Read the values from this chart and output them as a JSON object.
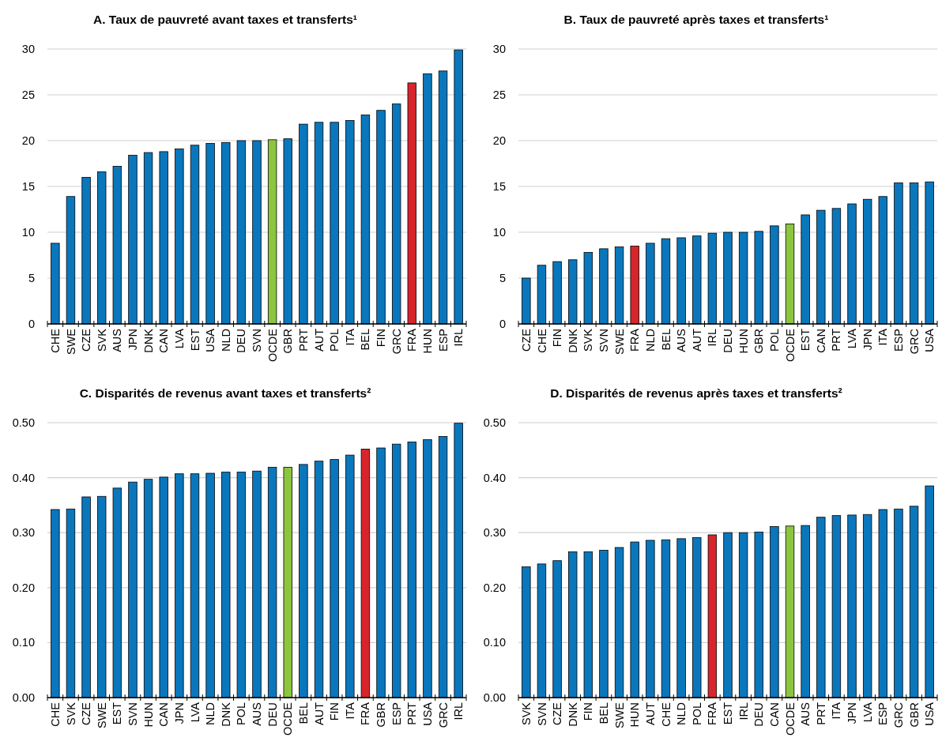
{
  "chart_data": [
    {
      "type": "bar",
      "title": "A. Taux de pauvreté avant taxes et transferts¹",
      "categories": [
        "CHE",
        "SWE",
        "CZE",
        "SVK",
        "AUS",
        "JPN",
        "DNK",
        "CAN",
        "LVA",
        "EST",
        "USA",
        "NLD",
        "DEU",
        "SVN",
        "OCDE",
        "GBR",
        "PRT",
        "AUT",
        "POL",
        "ITA",
        "BEL",
        "FIN",
        "GRC",
        "FRA",
        "HUN",
        "ESP",
        "IRL"
      ],
      "values": [
        8.8,
        13.9,
        16.0,
        16.6,
        17.2,
        18.4,
        18.7,
        18.8,
        19.1,
        19.5,
        19.7,
        19.8,
        20.0,
        20.0,
        20.1,
        20.2,
        21.8,
        22.0,
        22.0,
        22.2,
        22.8,
        23.3,
        24.0,
        26.3,
        27.3,
        27.6,
        29.9
      ],
      "colors": [
        "#0a77bd",
        "#0a77bd",
        "#0a77bd",
        "#0a77bd",
        "#0a77bd",
        "#0a77bd",
        "#0a77bd",
        "#0a77bd",
        "#0a77bd",
        "#0a77bd",
        "#0a77bd",
        "#0a77bd",
        "#0a77bd",
        "#0a77bd",
        "#8cc63f",
        "#0a77bd",
        "#0a77bd",
        "#0a77bd",
        "#0a77bd",
        "#0a77bd",
        "#0a77bd",
        "#0a77bd",
        "#0a77bd",
        "#d7252b",
        "#0a77bd",
        "#0a77bd",
        "#0a77bd"
      ],
      "ylim": [
        0,
        30
      ],
      "yticks": [
        0,
        5,
        10,
        15,
        20,
        25,
        30
      ],
      "grid": "y"
    },
    {
      "type": "bar",
      "title": "B. Taux de pauvreté après taxes et transferts¹",
      "categories": [
        "CZE",
        "CHE",
        "FIN",
        "DNK",
        "SVK",
        "SVN",
        "SWE",
        "FRA",
        "NLD",
        "BEL",
        "AUS",
        "AUT",
        "IRL",
        "DEU",
        "HUN",
        "GBR",
        "POL",
        "OCDE",
        "EST",
        "CAN",
        "PRT",
        "LVA",
        "JPN",
        "ITA",
        "ESP",
        "GRC",
        "USA"
      ],
      "values": [
        5.0,
        6.4,
        6.8,
        7.0,
        7.8,
        8.2,
        8.4,
        8.5,
        8.8,
        9.3,
        9.4,
        9.6,
        9.9,
        10.0,
        10.0,
        10.1,
        10.7,
        10.9,
        11.9,
        12.4,
        12.6,
        13.1,
        13.6,
        13.9,
        15.4,
        15.4,
        15.5
      ],
      "colors": [
        "#0a77bd",
        "#0a77bd",
        "#0a77bd",
        "#0a77bd",
        "#0a77bd",
        "#0a77bd",
        "#0a77bd",
        "#d7252b",
        "#0a77bd",
        "#0a77bd",
        "#0a77bd",
        "#0a77bd",
        "#0a77bd",
        "#0a77bd",
        "#0a77bd",
        "#0a77bd",
        "#0a77bd",
        "#8cc63f",
        "#0a77bd",
        "#0a77bd",
        "#0a77bd",
        "#0a77bd",
        "#0a77bd",
        "#0a77bd",
        "#0a77bd",
        "#0a77bd",
        "#0a77bd"
      ],
      "ylim": [
        0,
        30
      ],
      "yticks": [
        0,
        5,
        10,
        15,
        20,
        25,
        30
      ],
      "grid": "y"
    },
    {
      "type": "bar",
      "title": "C. Disparités de revenus avant taxes et transferts²",
      "categories": [
        "CHE",
        "SVK",
        "CZE",
        "SWE",
        "EST",
        "SVN",
        "HUN",
        "CAN",
        "JPN",
        "LVA",
        "NLD",
        "DNK",
        "POL",
        "AUS",
        "DEU",
        "OCDE",
        "BEL",
        "AUT",
        "FIN",
        "ITA",
        "FRA",
        "GBR",
        "ESP",
        "PRT",
        "USA",
        "GRC",
        "IRL"
      ],
      "values": [
        0.342,
        0.343,
        0.365,
        0.366,
        0.381,
        0.392,
        0.397,
        0.401,
        0.407,
        0.407,
        0.408,
        0.41,
        0.41,
        0.412,
        0.419,
        0.419,
        0.424,
        0.43,
        0.433,
        0.441,
        0.452,
        0.454,
        0.461,
        0.465,
        0.469,
        0.475,
        0.499
      ],
      "colors": [
        "#0a77bd",
        "#0a77bd",
        "#0a77bd",
        "#0a77bd",
        "#0a77bd",
        "#0a77bd",
        "#0a77bd",
        "#0a77bd",
        "#0a77bd",
        "#0a77bd",
        "#0a77bd",
        "#0a77bd",
        "#0a77bd",
        "#0a77bd",
        "#0a77bd",
        "#8cc63f",
        "#0a77bd",
        "#0a77bd",
        "#0a77bd",
        "#0a77bd",
        "#d7252b",
        "#0a77bd",
        "#0a77bd",
        "#0a77bd",
        "#0a77bd",
        "#0a77bd",
        "#0a77bd"
      ],
      "ylim": [
        0,
        0.5
      ],
      "yticks": [
        {
          "value": 0,
          "label": "0.00"
        },
        {
          "value": 0.1,
          "label": "0.10"
        },
        {
          "value": 0.2,
          "label": "0.20"
        },
        {
          "value": 0.3,
          "label": "0.30"
        },
        {
          "value": 0.4,
          "label": "0.40"
        },
        {
          "value": 0.5,
          "label": "0.50"
        }
      ],
      "grid": "y"
    },
    {
      "type": "bar",
      "title": "D. Disparités de revenus après taxes et transferts²",
      "categories": [
        "SVK",
        "SVN",
        "CZE",
        "DNK",
        "FIN",
        "BEL",
        "SWE",
        "HUN",
        "AUT",
        "CHE",
        "NLD",
        "POL",
        "FRA",
        "EST",
        "IRL",
        "DEU",
        "CAN",
        "OCDE",
        "AUS",
        "PRT",
        "ITA",
        "JPN",
        "LVA",
        "ESP",
        "GRC",
        "GBR",
        "USA"
      ],
      "values": [
        0.238,
        0.243,
        0.249,
        0.265,
        0.265,
        0.268,
        0.273,
        0.283,
        0.286,
        0.287,
        0.289,
        0.291,
        0.296,
        0.3,
        0.3,
        0.301,
        0.311,
        0.312,
        0.313,
        0.328,
        0.331,
        0.332,
        0.333,
        0.342,
        0.343,
        0.348,
        0.385
      ],
      "colors": [
        "#0a77bd",
        "#0a77bd",
        "#0a77bd",
        "#0a77bd",
        "#0a77bd",
        "#0a77bd",
        "#0a77bd",
        "#0a77bd",
        "#0a77bd",
        "#0a77bd",
        "#0a77bd",
        "#0a77bd",
        "#d7252b",
        "#0a77bd",
        "#0a77bd",
        "#0a77bd",
        "#0a77bd",
        "#8cc63f",
        "#0a77bd",
        "#0a77bd",
        "#0a77bd",
        "#0a77bd",
        "#0a77bd",
        "#0a77bd",
        "#0a77bd",
        "#0a77bd",
        "#0a77bd"
      ],
      "ylim": [
        0,
        0.5
      ],
      "yticks": [
        {
          "value": 0,
          "label": "0.00"
        },
        {
          "value": 0.1,
          "label": "0.10"
        },
        {
          "value": 0.2,
          "label": "0.20"
        },
        {
          "value": 0.3,
          "label": "0.30"
        },
        {
          "value": 0.4,
          "label": "0.40"
        },
        {
          "value": 0.5,
          "label": "0.50"
        }
      ],
      "grid": "y"
    }
  ]
}
